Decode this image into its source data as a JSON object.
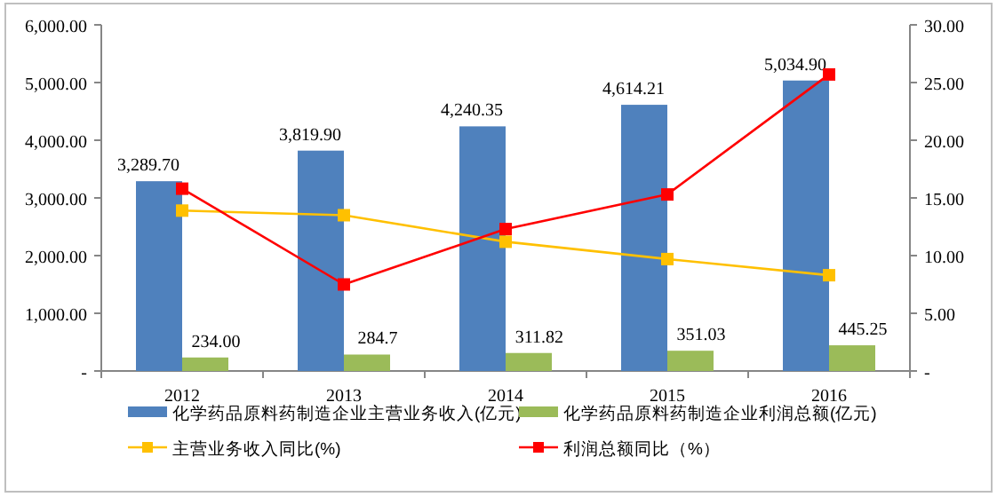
{
  "chart_data": {
    "type": "bar",
    "categories": [
      "2012",
      "2013",
      "2014",
      "2015",
      "2016"
    ],
    "series": [
      {
        "name": "化学药品原料药制造企业主营业务收入(亿元)",
        "color": "#4f81bd",
        "values": [
          3289.7,
          3819.9,
          4240.35,
          4614.21,
          5034.9
        ],
        "value_labels": [
          "3,289.70",
          "3,819.90",
          "4,240.35",
          "4,614.21",
          "5,034.90"
        ]
      },
      {
        "name": "化学药品原料药制造企业利润总额(亿元)",
        "color": "#9bbb59",
        "values": [
          234.0,
          284.7,
          311.82,
          351.03,
          445.25
        ],
        "value_labels": [
          "234.00",
          "284.7",
          "311.82",
          "351.03",
          "445.25"
        ]
      },
      {
        "name": "主营业务收入同比(%)",
        "type": "line",
        "axis": "y2",
        "color": "#ffc000",
        "marker": "square",
        "values": [
          13.9,
          13.5,
          11.2,
          9.7,
          8.3
        ]
      },
      {
        "name": "利润总额同比（%）",
        "type": "line",
        "axis": "y2",
        "color": "#ff0000",
        "marker": "square",
        "values": [
          15.8,
          7.5,
          12.3,
          15.3,
          25.7
        ]
      }
    ],
    "ylim": [
      0,
      6000
    ],
    "yticks": [
      {
        "value": 0,
        "label": "-"
      },
      {
        "value": 1000,
        "label": "1,000.00"
      },
      {
        "value": 2000,
        "label": "2,000.00"
      },
      {
        "value": 3000,
        "label": "3,000.00"
      },
      {
        "value": 4000,
        "label": "4,000.00"
      },
      {
        "value": 5000,
        "label": "5,000.00"
      },
      {
        "value": 6000,
        "label": "6,000.00"
      }
    ],
    "y2lim": [
      0,
      30
    ],
    "y2ticks": [
      {
        "value": 0,
        "label": "-"
      },
      {
        "value": 5,
        "label": "5.00"
      },
      {
        "value": 10,
        "label": "10.00"
      },
      {
        "value": 15,
        "label": "15.00"
      },
      {
        "value": 20,
        "label": "20.00"
      },
      {
        "value": 25,
        "label": "25.00"
      },
      {
        "value": 30,
        "label": "30.00"
      }
    ],
    "grid": false,
    "legend": "bottom"
  }
}
